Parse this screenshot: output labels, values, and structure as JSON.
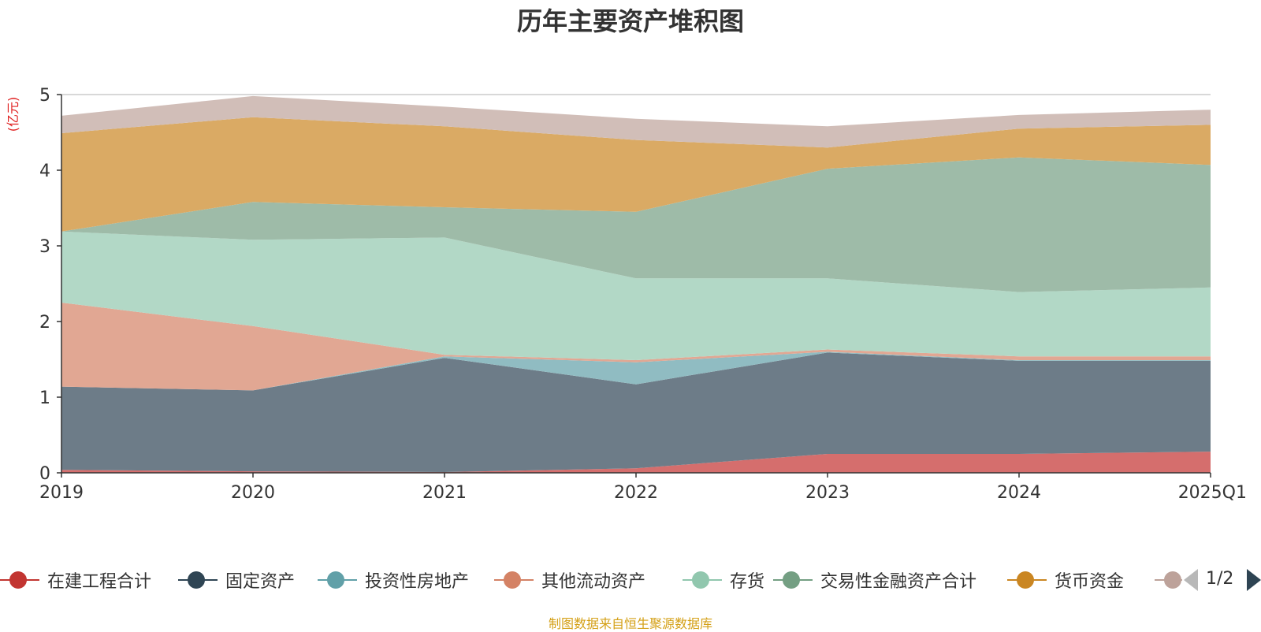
{
  "chart_data": {
    "type": "area",
    "title": "历年主要资产堆积图",
    "unit_label": "(亿元)",
    "x": [
      "2019",
      "2020",
      "2021",
      "2022",
      "2023",
      "2024",
      "2025Q1"
    ],
    "ylim": [
      0,
      5
    ],
    "yticks": [
      0,
      1,
      2,
      3,
      4,
      5
    ],
    "stacked": true,
    "grid": true,
    "series": [
      {
        "name": "在建工程合计",
        "color": "#c23531",
        "area_color": "#d56e6d",
        "values": [
          0.04,
          0.02,
          0.01,
          0.06,
          0.25,
          0.25,
          0.28
        ]
      },
      {
        "name": "固定资产",
        "color": "#2f4554",
        "area_color": "#6d7c88",
        "values": [
          1.1,
          1.07,
          1.51,
          1.11,
          1.34,
          1.23,
          1.2
        ]
      },
      {
        "name": "投资性房地产",
        "color": "#61a0a8",
        "area_color": "#90bcc2",
        "values": [
          0.0,
          0.0,
          0.02,
          0.29,
          0.01,
          0.01,
          0.01
        ]
      },
      {
        "name": "其他流动资产",
        "color": "#d48265",
        "area_color": "#e1a793",
        "values": [
          1.11,
          0.85,
          0.02,
          0.03,
          0.03,
          0.05,
          0.05
        ]
      },
      {
        "name": "存货",
        "color": "#91c7ae",
        "area_color": "#b2d8c6",
        "values": [
          0.94,
          1.14,
          1.55,
          1.08,
          0.94,
          0.85,
          0.91
        ]
      },
      {
        "name": "交易性金融资产合计",
        "color": "#749f83",
        "area_color": "#9ebba8",
        "values": [
          0.0,
          0.5,
          0.4,
          0.88,
          1.45,
          1.78,
          1.62
        ]
      },
      {
        "name": "货币资金",
        "color": "#ca8622",
        "area_color": "#daaa64",
        "values": [
          1.3,
          1.12,
          1.07,
          0.95,
          0.28,
          0.38,
          0.53
        ]
      },
      {
        "name": "",
        "color": "#bda29a",
        "area_color": "#d1beb8",
        "values": [
          0.23,
          0.28,
          0.26,
          0.28,
          0.28,
          0.18,
          0.2
        ]
      }
    ]
  },
  "legend": {
    "page_text": "1/2"
  },
  "source_text": "制图数据来自恒生聚源数据库"
}
